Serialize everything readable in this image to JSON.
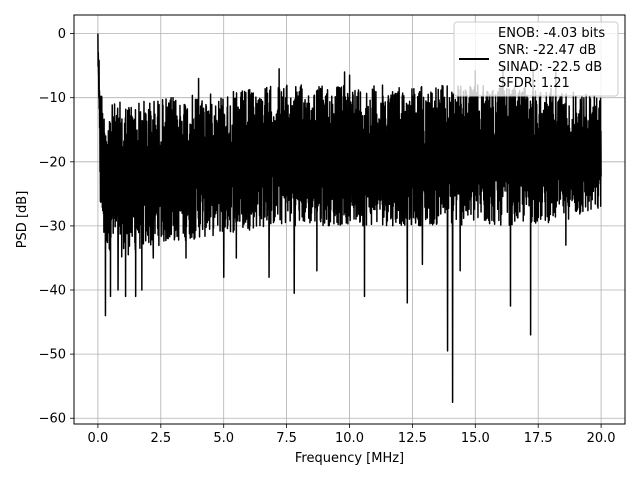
{
  "chart_data": {
    "type": "line",
    "xlabel": "Frequency [MHz]",
    "ylabel": "PSD [dB]",
    "xlim": [
      -0.95,
      20.95
    ],
    "ylim": [
      -60.9,
      2.9
    ],
    "x_ticks": [
      0.0,
      2.5,
      5.0,
      7.5,
      10.0,
      12.5,
      15.0,
      17.5,
      20.0
    ],
    "x_tick_labels": [
      "0.0",
      "2.5",
      "5.0",
      "7.5",
      "10.0",
      "12.5",
      "15.0",
      "17.5",
      "20.0"
    ],
    "y_ticks": [
      0,
      -10,
      -20,
      -30,
      -40,
      -50,
      -60
    ],
    "y_tick_labels": [
      "0",
      "−10",
      "−20",
      "−30",
      "−40",
      "−50",
      "−60"
    ],
    "grid": true,
    "legend_position": "top-right",
    "line_color": "#000000",
    "series": [
      {
        "legend_lines": [
          "ENOB: -4.03 bits",
          "SNR: -22.47 dB",
          "SINAD: -22.5 dB",
          "SFDR: 1.21"
        ],
        "x_range": [
          0.0,
          20.0
        ],
        "envelope": {
          "x": [
            0.0,
            0.1,
            0.25,
            0.5,
            1.0,
            1.5,
            2.5,
            4.0,
            5.5,
            7.0,
            8.0,
            10.0,
            12.0,
            14.0,
            16.0,
            18.0,
            20.0
          ],
          "upper": [
            0.0,
            -7.0,
            -12.0,
            -11.0,
            -10.5,
            -10.5,
            -10.0,
            -9.5,
            -9.0,
            -8.0,
            -8.0,
            -8.0,
            -8.0,
            -8.0,
            -8.0,
            -8.5,
            -9.5
          ],
          "lower": [
            -4.0,
            -28.0,
            -33.0,
            -34.0,
            -35.0,
            -34.0,
            -33.0,
            -32.0,
            -31.0,
            -30.0,
            -30.0,
            -30.0,
            -30.0,
            -30.0,
            -30.0,
            -29.5,
            -28.0
          ]
        },
        "peaks": [
          {
            "x": 0.0,
            "y": 0.0
          },
          {
            "x": 0.03,
            "y": -6.5
          },
          {
            "x": 4.0,
            "y": -7.0
          },
          {
            "x": 7.2,
            "y": -5.5
          },
          {
            "x": 9.8,
            "y": -6.0
          },
          {
            "x": 10.0,
            "y": -6.5
          },
          {
            "x": 15.0,
            "y": -5.8
          },
          {
            "x": 16.1,
            "y": -5.2
          },
          {
            "x": 17.2,
            "y": -5.7
          },
          {
            "x": 17.3,
            "y": -5.5
          },
          {
            "x": 18.2,
            "y": -6.0
          }
        ],
        "troughs": [
          {
            "x": 0.3,
            "y": -44.0
          },
          {
            "x": 0.5,
            "y": -41.0
          },
          {
            "x": 0.8,
            "y": -40.0
          },
          {
            "x": 1.1,
            "y": -41.0
          },
          {
            "x": 1.5,
            "y": -41.0
          },
          {
            "x": 1.75,
            "y": -40.0
          },
          {
            "x": 2.2,
            "y": -35.0
          },
          {
            "x": 3.5,
            "y": -35.0
          },
          {
            "x": 5.0,
            "y": -38.0
          },
          {
            "x": 5.5,
            "y": -35.0
          },
          {
            "x": 6.8,
            "y": -38.0
          },
          {
            "x": 7.8,
            "y": -40.5
          },
          {
            "x": 8.7,
            "y": -37.0
          },
          {
            "x": 10.6,
            "y": -41.0
          },
          {
            "x": 12.3,
            "y": -42.0
          },
          {
            "x": 12.9,
            "y": -36.0
          },
          {
            "x": 13.9,
            "y": -49.5
          },
          {
            "x": 14.1,
            "y": -57.5
          },
          {
            "x": 14.4,
            "y": -37.0
          },
          {
            "x": 16.4,
            "y": -42.5
          },
          {
            "x": 17.2,
            "y": -47.0
          },
          {
            "x": 18.6,
            "y": -33.0
          }
        ]
      }
    ]
  }
}
